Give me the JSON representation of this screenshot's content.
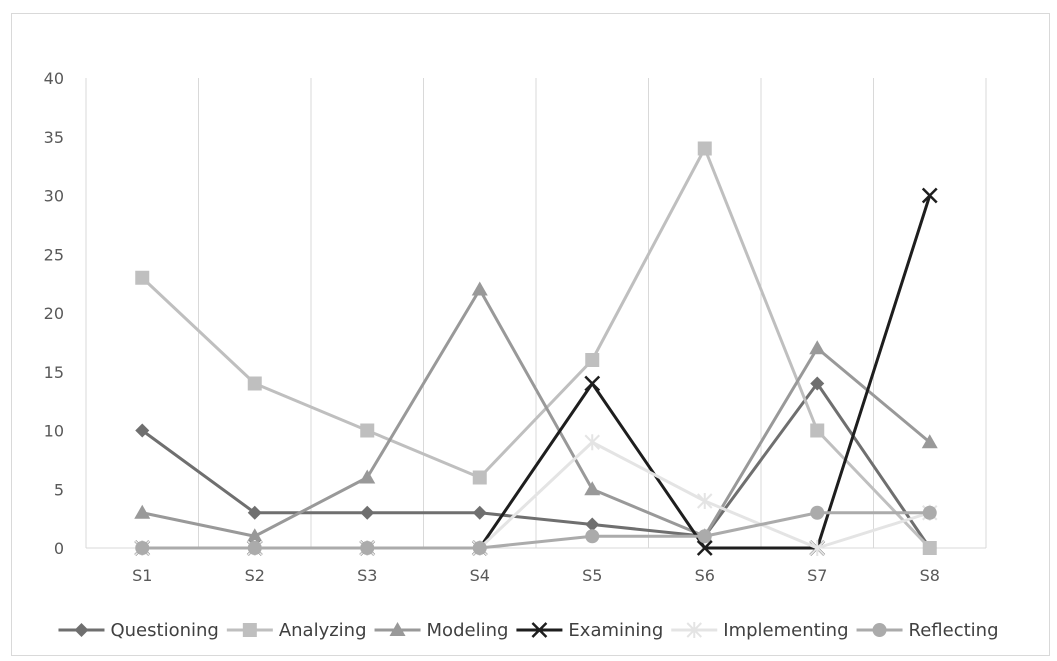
{
  "chart_data": {
    "type": "line",
    "title": "",
    "xlabel": "",
    "ylabel": "",
    "categories": [
      "S1",
      "S2",
      "S3",
      "S4",
      "S5",
      "S6",
      "S7",
      "S8"
    ],
    "ylim": [
      0,
      40
    ],
    "yticks": [
      0,
      5,
      10,
      15,
      20,
      25,
      30,
      35,
      40
    ],
    "grid": "vertical",
    "legend_position": "bottom",
    "series": [
      {
        "name": "Questioning",
        "values": [
          10,
          3,
          3,
          3,
          2,
          1,
          14,
          0
        ],
        "color": "#6f6f6f",
        "marker": "diamond"
      },
      {
        "name": "Analyzing",
        "values": [
          23,
          14,
          10,
          6,
          16,
          34,
          10,
          0
        ],
        "color": "#bfbfbf",
        "marker": "square"
      },
      {
        "name": "Modeling",
        "values": [
          3,
          1,
          6,
          22,
          5,
          1,
          17,
          9
        ],
        "color": "#999999",
        "marker": "triangle"
      },
      {
        "name": "Examining",
        "values": [
          0,
          0,
          0,
          0,
          14,
          0,
          0,
          30
        ],
        "color": "#1e1e1e",
        "marker": "x"
      },
      {
        "name": "Implementing",
        "values": [
          0,
          0,
          0,
          0,
          9,
          4,
          0,
          3
        ],
        "color": "#e4e4e4",
        "marker": "star"
      },
      {
        "name": "Reflecting",
        "values": [
          0,
          0,
          0,
          0,
          1,
          1,
          3,
          3
        ],
        "color": "#ababab",
        "marker": "circle"
      }
    ]
  }
}
